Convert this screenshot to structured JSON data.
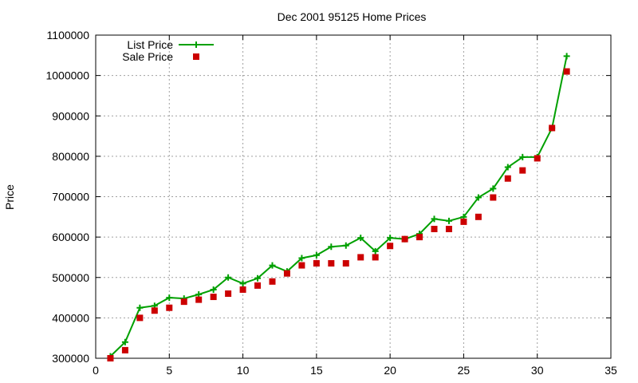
{
  "chart_data": {
    "type": "line",
    "title": "Dec 2001 95125 Home Prices",
    "xlabel": "",
    "ylabel": "Price",
    "xlim": [
      0,
      35
    ],
    "ylim": [
      300000,
      1100000
    ],
    "xticks": [
      0,
      5,
      10,
      15,
      20,
      25,
      30,
      35
    ],
    "yticks": [
      300000,
      400000,
      500000,
      600000,
      700000,
      800000,
      900000,
      1000000,
      1100000
    ],
    "grid": true,
    "legend_position": "top-left",
    "x": [
      1,
      2,
      3,
      4,
      5,
      6,
      7,
      8,
      9,
      10,
      11,
      12,
      13,
      14,
      15,
      16,
      17,
      18,
      19,
      20,
      21,
      22,
      23,
      24,
      25,
      26,
      27,
      28,
      29,
      30,
      31,
      32
    ],
    "series": [
      {
        "name": "List Price",
        "style": "linespoints",
        "color": "#00a000",
        "values": [
          305000,
          340000,
          425000,
          430000,
          450000,
          448000,
          458000,
          470000,
          500000,
          485000,
          498000,
          530000,
          515000,
          548000,
          555000,
          576000,
          579000,
          598000,
          565000,
          598000,
          595000,
          608000,
          645000,
          640000,
          650000,
          698000,
          720000,
          773000,
          798000,
          798000,
          870000,
          1048000
        ]
      },
      {
        "name": "Sale Price",
        "style": "points",
        "color": "#cc0000",
        "values": [
          300000,
          320000,
          400000,
          418000,
          425000,
          440000,
          445000,
          452000,
          460000,
          470000,
          480000,
          490000,
          510000,
          530000,
          535000,
          535000,
          535000,
          550000,
          550000,
          578000,
          595000,
          600000,
          620000,
          620000,
          638000,
          650000,
          698000,
          745000,
          765000,
          795000,
          870000,
          1010000
        ]
      }
    ]
  }
}
